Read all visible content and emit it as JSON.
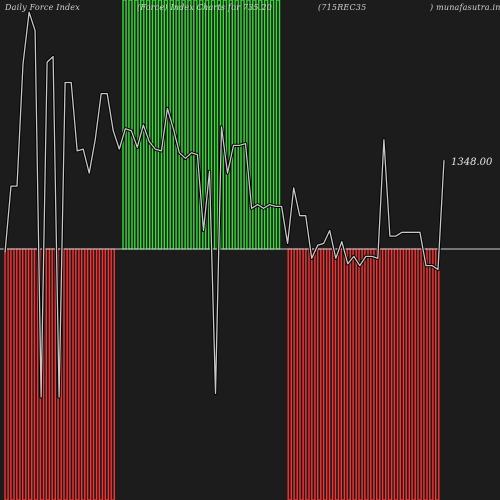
{
  "header": {
    "left_title": "Daily Force  Index",
    "middle_title": "(Force) Index Charts for 735.20",
    "symbol": "(715REC35",
    "site": ") munafasutra.in"
  },
  "chart_data": {
    "type": "bar",
    "title": "Daily Force  Index",
    "subtitle": "(Force) Index Charts for 735.20",
    "symbol": "(715REC35",
    "last_value_label": "1348.00",
    "grid": false,
    "zero_line_color": "#cfcfcf",
    "line_color": "#c8c8c8",
    "colors": {
      "positive": "#33e033",
      "negative": "#ff3030",
      "background": "#1c1c1c"
    },
    "bar_sign_by_index": {
      "negative_range": [
        0,
        19
      ],
      "positive_range": [
        20,
        46
      ],
      "negative_range_2": [
        47,
        73
      ]
    },
    "bar_count": 74,
    "force_line": [
      -2,
      34,
      34,
      100,
      128,
      118,
      -80,
      101,
      104,
      -80,
      90,
      90,
      53,
      54,
      41,
      59,
      84,
      84,
      64,
      54,
      65,
      64,
      55,
      67,
      58,
      54,
      53,
      76,
      65,
      52,
      49,
      52,
      51,
      10,
      42,
      -78,
      66,
      41,
      56,
      56,
      57,
      22,
      24,
      22,
      24,
      23,
      23,
      3,
      33,
      18,
      18,
      -5,
      2,
      3,
      10,
      -5,
      4,
      -8,
      -4,
      -9,
      -4,
      -4,
      -5,
      59,
      7,
      7,
      9,
      9,
      9,
      9,
      -9,
      -9,
      -11,
      48
    ]
  }
}
